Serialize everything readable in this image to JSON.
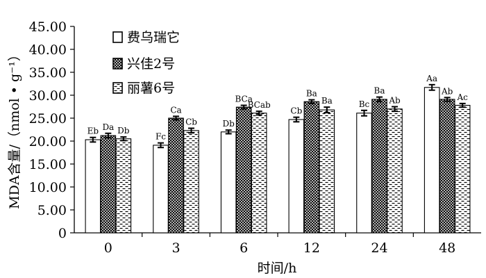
{
  "chart_data": {
    "type": "bar",
    "title": "",
    "xlabel": "时间/h",
    "ylabel": "MDA含量/（nmol • g⁻¹）",
    "ylim": [
      0,
      45
    ],
    "yticks": [
      "0",
      "5.00",
      "10.00",
      "15.00",
      "20.00",
      "25.00",
      "30.00",
      "35.00",
      "40.00",
      "45.00"
    ],
    "categories": [
      "0",
      "3",
      "6",
      "12",
      "24",
      "48"
    ],
    "grid": false,
    "legend_position": "top-left",
    "series": [
      {
        "name": "费乌瑞它",
        "pattern": "white",
        "values": [
          20.3,
          19.1,
          22.0,
          24.7,
          26.1,
          31.7
        ],
        "errors": [
          0.5,
          0.5,
          0.4,
          0.5,
          0.6,
          0.6
        ],
        "labels": [
          "Eb",
          "Fc",
          "Db",
          "Cb",
          "Bc",
          "Aa"
        ]
      },
      {
        "name": "兴佳2号",
        "pattern": "crosshatch",
        "values": [
          21.2,
          25.0,
          27.4,
          28.6,
          29.1,
          29.1
        ],
        "errors": [
          0.5,
          0.4,
          0.4,
          0.4,
          0.5,
          0.4
        ],
        "labels": [
          "Da",
          "Ca",
          "BCa",
          "Ba",
          "Ba",
          "Ab"
        ]
      },
      {
        "name": "丽薯6号",
        "pattern": "dashes",
        "values": [
          20.5,
          22.3,
          26.1,
          26.8,
          27.0,
          27.8
        ],
        "errors": [
          0.4,
          0.5,
          0.4,
          0.6,
          0.5,
          0.4
        ],
        "labels": [
          "Db",
          "Cb",
          "BCab",
          "Ba",
          "Ab",
          "Ac"
        ]
      }
    ]
  }
}
